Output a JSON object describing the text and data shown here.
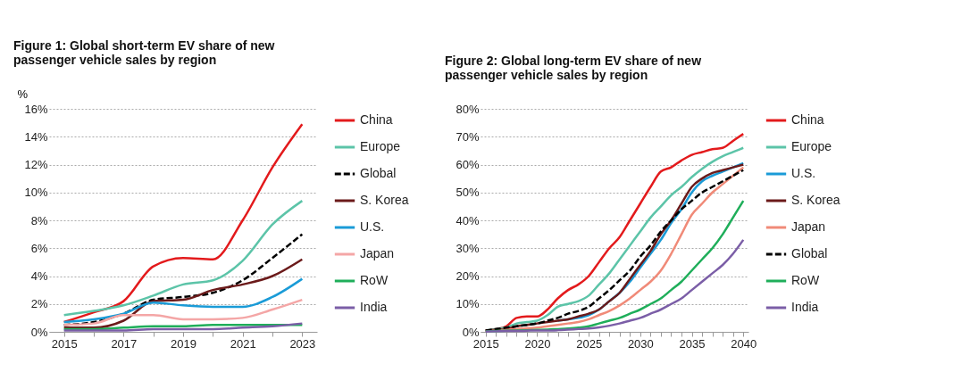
{
  "chart_data": [
    {
      "type": "line",
      "title": "Figure 1: Global short-term EV share of new passenger vehicle sales by region",
      "ylabel": "%",
      "categories": [
        "2015",
        null,
        "2017",
        null,
        "2019",
        null,
        "2021",
        null,
        "2023"
      ],
      "ylim": [
        0,
        16
      ],
      "yticks": [
        {
          "value": 0,
          "label": "0%"
        },
        {
          "value": 2,
          "label": "2%"
        },
        {
          "value": 4,
          "label": "4%"
        },
        {
          "value": 6,
          "label": "6%"
        },
        {
          "value": 8,
          "label": "8%"
        },
        {
          "value": 10,
          "label": "10%"
        },
        {
          "value": 12,
          "label": "12%"
        },
        {
          "value": 14,
          "label": "14%"
        },
        {
          "value": 16,
          "label": "16%"
        }
      ],
      "grid": "y",
      "legend": "right",
      "marker": "none",
      "series": [
        {
          "name": "China",
          "color": "#e31a1c",
          "values": [
            0.7,
            1.4,
            2.2,
            4.7,
            5.3,
            5.2,
            8.0,
            11.8,
            14.9
          ]
        },
        {
          "name": "Europe",
          "color": "#5cc4a8",
          "values": [
            1.2,
            1.5,
            1.9,
            2.6,
            3.4,
            3.7,
            5.1,
            7.7,
            9.4
          ]
        },
        {
          "name": "Global",
          "color": "#000000",
          "line_style": "dashed",
          "values": [
            0.5,
            0.7,
            1.3,
            2.3,
            2.5,
            2.8,
            3.7,
            5.3,
            7.0
          ]
        },
        {
          "name": "S. Korea",
          "color": "#6b1a1a",
          "values": [
            0.3,
            0.3,
            0.8,
            2.2,
            2.3,
            3.0,
            3.4,
            4.0,
            5.2
          ]
        },
        {
          "name": "U.S.",
          "color": "#1a9bd7",
          "values": [
            0.7,
            0.9,
            1.3,
            2.1,
            1.9,
            1.8,
            1.8,
            2.5,
            3.8
          ]
        },
        {
          "name": "Japan",
          "color": "#f4a6a6",
          "values": [
            0.5,
            0.6,
            1.2,
            1.2,
            0.9,
            0.9,
            1.0,
            1.6,
            2.3
          ]
        },
        {
          "name": "RoW",
          "color": "#1fae5a",
          "values": [
            0.2,
            0.2,
            0.3,
            0.4,
            0.4,
            0.5,
            0.5,
            0.5,
            0.5
          ]
        },
        {
          "name": "India",
          "color": "#7b5ea7",
          "values": [
            0.1,
            0.1,
            0.1,
            0.2,
            0.2,
            0.2,
            0.3,
            0.4,
            0.6
          ]
        }
      ]
    },
    {
      "type": "line",
      "title": "Figure 2: Global long-term EV share of new passenger vehicle sales by region",
      "categories": [
        "2015",
        null,
        null,
        null,
        null,
        "2020",
        null,
        null,
        null,
        null,
        "2025",
        null,
        null,
        null,
        null,
        "2030",
        null,
        null,
        null,
        null,
        "2035",
        null,
        null,
        null,
        null,
        "2040"
      ],
      "ylim": [
        0,
        80
      ],
      "yticks": [
        {
          "value": 0,
          "label": "0%"
        },
        {
          "value": 10,
          "label": "10%"
        },
        {
          "value": 20,
          "label": "20%"
        },
        {
          "value": 30,
          "label": "30%"
        },
        {
          "value": 40,
          "label": "40%"
        },
        {
          "value": 50,
          "label": "50%"
        },
        {
          "value": 60,
          "label": "60%"
        },
        {
          "value": 70,
          "label": "70%"
        },
        {
          "value": 80,
          "label": "80%"
        }
      ],
      "grid": "y",
      "legend": "right",
      "marker": "none",
      "series": [
        {
          "name": "China",
          "color": "#e31a1c",
          "values": [
            0.5,
            1,
            2,
            5,
            5.5,
            5.5,
            8,
            12,
            15,
            17,
            20,
            25,
            30,
            34,
            40,
            46,
            52,
            57.5,
            59,
            61.5,
            63.5,
            64.5,
            65.5,
            66,
            68.5,
            71
          ]
        },
        {
          "name": "Europe",
          "color": "#5cc4a8",
          "values": [
            0.5,
            1,
            1.5,
            3,
            3.5,
            4,
            6,
            9,
            10,
            11,
            13,
            17,
            21,
            26,
            31,
            36,
            41,
            45,
            49,
            52,
            55.5,
            58.5,
            61,
            63,
            64.5,
            66
          ]
        },
        {
          "name": "U.S.",
          "color": "#1a9bd7",
          "values": [
            null,
            null,
            null,
            null,
            null,
            null,
            null,
            4,
            4.5,
            5,
            6,
            8,
            11,
            14,
            18,
            23,
            28,
            33,
            39,
            44,
            50,
            54,
            56,
            57.5,
            59,
            60.5
          ]
        },
        {
          "name": "S. Korea",
          "color": "#6b1a1a",
          "values": [
            0.5,
            0.8,
            1,
            2,
            2.5,
            3,
            3.5,
            4,
            4.5,
            5.5,
            6.5,
            8,
            11,
            14,
            19,
            24,
            29,
            35,
            40,
            46,
            52,
            55,
            57,
            58,
            59,
            60
          ]
        },
        {
          "name": "Japan",
          "color": "#f08a78",
          "values": [
            0.3,
            0.5,
            0.8,
            1,
            1.3,
            1.5,
            2,
            2.5,
            3,
            3.5,
            4.5,
            6,
            7.5,
            9.5,
            12,
            15,
            18,
            22,
            28,
            35,
            42,
            46,
            50,
            53,
            56,
            59
          ]
        },
        {
          "name": "Global",
          "color": "#000000",
          "line_style": "dashed",
          "values": [
            0.5,
            1,
            1.5,
            2,
            2.5,
            3,
            4,
            5,
            6.5,
            7.5,
            9,
            12,
            15,
            18.5,
            22,
            27,
            31,
            36,
            40,
            44,
            47,
            50,
            52,
            54,
            56,
            58
          ]
        },
        {
          "name": "RoW",
          "color": "#1fae5a",
          "values": [
            0.2,
            0.3,
            0.4,
            0.5,
            0.6,
            0.7,
            0.8,
            1,
            1.2,
            1.5,
            2,
            3,
            4,
            5,
            6.5,
            8,
            10,
            12,
            15,
            18,
            22,
            26,
            30,
            35,
            41,
            47
          ]
        },
        {
          "name": "India",
          "color": "#7b5ea7",
          "values": [
            0.1,
            0.2,
            0.3,
            0.3,
            0.4,
            0.5,
            0.5,
            0.6,
            0.8,
            1,
            1.2,
            1.6,
            2.2,
            3,
            4,
            5,
            6.5,
            8,
            10,
            12,
            15,
            18,
            21,
            24,
            28,
            33
          ]
        }
      ]
    }
  ]
}
